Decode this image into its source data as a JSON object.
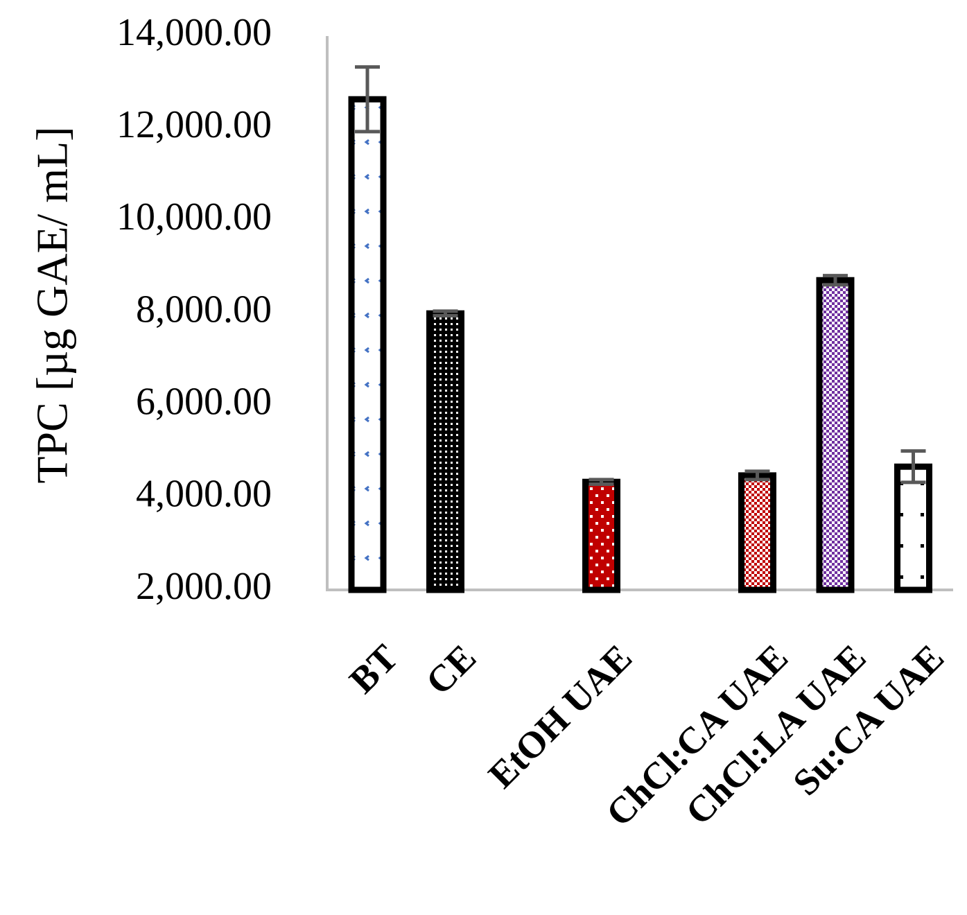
{
  "chart_data": {
    "type": "bar",
    "y_label": "TPC [µg GAE/ mL]",
    "categories": [
      "BT",
      "CE",
      null,
      "EtOH UAE",
      null,
      "ChCl:CA UAE",
      "ChCl:LA UAE",
      "Su:CA UAE"
    ],
    "values": [
      12630,
      7990,
      null,
      4340,
      null,
      4480,
      8710,
      4670
    ],
    "errors": [
      700,
      50,
      null,
      50,
      null,
      90,
      100,
      340
    ],
    "colors": [
      "#ffffff",
      "#000000",
      null,
      "#c00000",
      null,
      "#c00000",
      "#7030a0",
      "#ffffff"
    ],
    "ylim": [
      2000,
      14000
    ],
    "yticks": [
      {
        "value": 2000,
        "label": "2,000.00"
      },
      {
        "value": 4000,
        "label": "4,000.00"
      },
      {
        "value": 6000,
        "label": "6,000.00"
      },
      {
        "value": 8000,
        "label": "8,000.00"
      },
      {
        "value": 10000,
        "label": "10,000.00"
      },
      {
        "value": 12000,
        "label": "12,000.00"
      },
      {
        "value": 14000,
        "label": "14,000.00"
      }
    ],
    "grid": false
  }
}
